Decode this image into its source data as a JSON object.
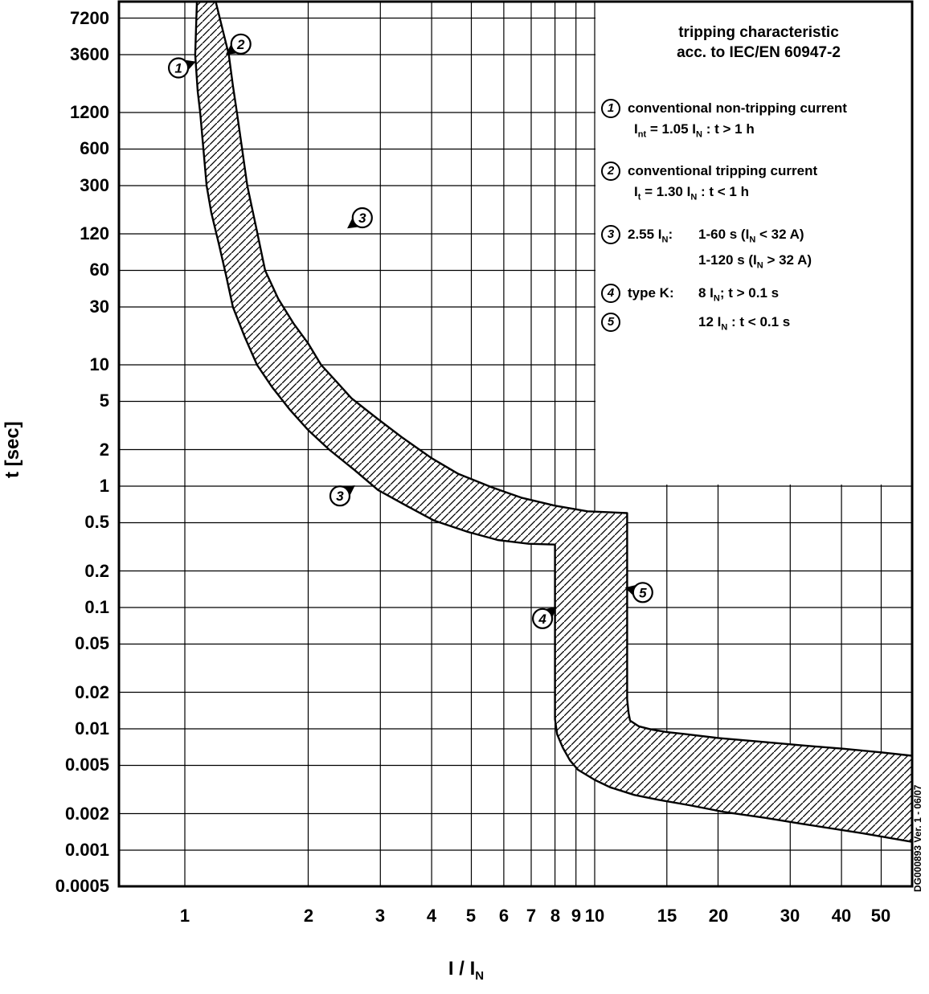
{
  "chart_data": {
    "type": "area",
    "title": "tripping characteristic acc. to IEC/EN 60947-2",
    "xlabel": "I / I_N",
    "ylabel": "t [sec]",
    "x_scale": "log",
    "y_scale": "log",
    "grid": true,
    "x_range": [
      0.69,
      60
    ],
    "y_range": [
      0.0005,
      10000
    ],
    "x_ticks": [
      1,
      2,
      3,
      4,
      5,
      6,
      7,
      8,
      9,
      10,
      15,
      20,
      30,
      40,
      50
    ],
    "y_ticks": [
      7200,
      3600,
      1200,
      600,
      300,
      120,
      60,
      30,
      10,
      5,
      2,
      1,
      0.5,
      0.2,
      0.1,
      0.05,
      0.02,
      0.01,
      0.005,
      0.002,
      0.001,
      0.0005
    ],
    "band": {
      "name": "tripping-characteristic-band",
      "lower_boundary": [
        [
          1.07,
          9800
        ],
        [
          1.06,
          3600
        ],
        [
          1.075,
          1800
        ],
        [
          1.09,
          1200
        ],
        [
          1.11,
          600
        ],
        [
          1.13,
          300
        ],
        [
          1.16,
          180
        ],
        [
          1.21,
          100
        ],
        [
          1.26,
          55
        ],
        [
          1.31,
          30
        ],
        [
          1.4,
          17
        ],
        [
          1.5,
          10
        ],
        [
          1.63,
          6.6
        ],
        [
          1.8,
          4.3
        ],
        [
          2.0,
          2.9
        ],
        [
          2.25,
          2.0
        ],
        [
          2.6,
          1.35
        ],
        [
          2.96,
          0.93
        ],
        [
          3.5,
          0.68
        ],
        [
          4.06,
          0.52
        ],
        [
          4.9,
          0.42
        ],
        [
          5.8,
          0.36
        ],
        [
          6.9,
          0.335
        ],
        [
          8.0,
          0.33
        ],
        [
          8.0,
          0.012
        ],
        [
          8.1,
          0.009
        ],
        [
          8.36,
          0.007
        ],
        [
          8.7,
          0.0055
        ],
        [
          9.1,
          0.0046
        ],
        [
          10.0,
          0.0038
        ],
        [
          10.9,
          0.0033
        ],
        [
          12.5,
          0.00285
        ],
        [
          14.3,
          0.0026
        ],
        [
          17.0,
          0.00235
        ],
        [
          20.6,
          0.00207
        ],
        [
          26.0,
          0.00185
        ],
        [
          32.0,
          0.00165
        ],
        [
          45.0,
          0.00138
        ],
        [
          59.5,
          0.00117
        ]
      ],
      "upper_boundary": [
        [
          1.19,
          9800
        ],
        [
          1.28,
          3600
        ],
        [
          1.31,
          2000
        ],
        [
          1.34,
          1200
        ],
        [
          1.38,
          600
        ],
        [
          1.42,
          300
        ],
        [
          1.49,
          140
        ],
        [
          1.57,
          60
        ],
        [
          1.69,
          35
        ],
        [
          1.84,
          22
        ],
        [
          2.0,
          15
        ],
        [
          2.15,
          10
        ],
        [
          2.35,
          7.2
        ],
        [
          2.55,
          5.3
        ],
        [
          2.95,
          3.6
        ],
        [
          3.4,
          2.5
        ],
        [
          4.0,
          1.7
        ],
        [
          4.65,
          1.26
        ],
        [
          5.6,
          0.98
        ],
        [
          6.65,
          0.8
        ],
        [
          8.0,
          0.69
        ],
        [
          9.6,
          0.62
        ],
        [
          12.0,
          0.6
        ],
        [
          12.0,
          0.0175
        ],
        [
          12.1,
          0.0135
        ],
        [
          12.2,
          0.0117
        ],
        [
          12.8,
          0.0105
        ],
        [
          13.7,
          0.0099
        ],
        [
          15.0,
          0.0094
        ],
        [
          16.4,
          0.0091
        ],
        [
          20.0,
          0.0084
        ],
        [
          25.8,
          0.0078
        ],
        [
          32.0,
          0.0073
        ],
        [
          40.5,
          0.00685
        ],
        [
          50.0,
          0.0064
        ],
        [
          59.5,
          0.006
        ]
      ]
    },
    "markers": [
      {
        "label": "1",
        "x": 0.965,
        "y": 2800,
        "pointer_deg": -20
      },
      {
        "label": "2",
        "x": 1.37,
        "y": 4400,
        "pointer_deg": 145
      },
      {
        "label": "3",
        "x": 2.71,
        "y": 163,
        "pointer_deg": 145
      },
      {
        "label": "3",
        "x": 2.39,
        "y": 0.83,
        "pointer_deg": -35
      },
      {
        "label": "4",
        "x": 7.46,
        "y": 0.081,
        "pointer_deg": -40
      },
      {
        "label": "5",
        "x": 13.1,
        "y": 0.133,
        "pointer_deg": 195
      }
    ]
  },
  "axes": {
    "x_label_display": "I / I~N~",
    "y_label_display": "t [sec]"
  },
  "legend": {
    "title_line1": "tripping characteristic",
    "title_line2": "acc. to IEC/EN 60947-2",
    "items": [
      {
        "num": "1",
        "line1": "conventional non-tripping current",
        "line2": "I~nt~ = 1.05 I~N~ : t > 1 h"
      },
      {
        "num": "2",
        "line1": "conventional tripping current",
        "line2": "I~t~ = 1.30 I~N~ : t < 1 h"
      },
      {
        "num": "3",
        "col1": "2.55 I~N~:",
        "line1": "1-60 s (I~N~ < 32 A)",
        "line2": "1-120 s (I~N~ > 32 A)"
      },
      {
        "num": "4",
        "col1": "type K:",
        "line1": "8 I~N~; t > 0.1 s"
      },
      {
        "num": "5",
        "col1": "",
        "line1": "12 I~N~ : t < 0.1 s"
      }
    ]
  },
  "doc_id": "DG000893 Ver. 1 - 06/07"
}
